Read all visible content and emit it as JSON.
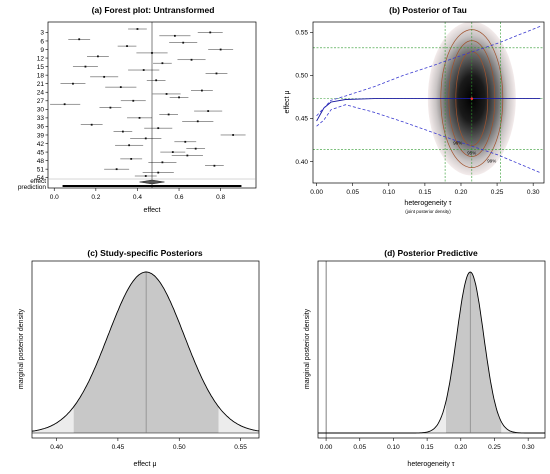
{
  "chart_data": [
    {
      "panel": "a",
      "type": "forest",
      "title": "(a) Forest plot: Untransformed",
      "xlabel": "effect",
      "xlim": [
        -0.03,
        0.97
      ],
      "xticks": [
        "0.0",
        "0.2",
        "0.4",
        "0.6",
        "0.8"
      ],
      "study_labels": [
        "3",
        "6",
        "9",
        "12",
        "15",
        "18",
        "21",
        "24",
        "27",
        "30",
        "33",
        "36",
        "39",
        "42",
        "45",
        "48",
        "51",
        "54"
      ],
      "estimates": [
        0.4,
        0.75,
        0.58,
        0.12,
        0.62,
        0.35,
        0.8,
        0.47,
        0.21,
        0.66,
        0.52,
        0.15,
        0.43,
        0.78,
        0.24,
        0.49,
        0.09,
        0.32,
        0.71,
        0.54,
        0.6,
        0.38,
        0.05,
        0.27,
        0.74,
        0.55,
        0.41,
        0.69,
        0.18,
        0.5,
        0.33,
        0.86,
        0.44,
        0.63,
        0.36,
        0.68,
        0.57,
        0.64,
        0.37,
        0.52,
        0.77,
        0.3,
        0.5,
        0.44
      ],
      "summary": {
        "label": "effect",
        "value": 0.47,
        "lower": 0.41,
        "upper": 0.53
      },
      "prediction": {
        "label": "prediction",
        "value": 0.47,
        "lower": 0.04,
        "upper": 0.9
      }
    },
    {
      "panel": "b",
      "type": "contour",
      "title": "(b) Posterior of Tau",
      "xlabel": "heterogeneity τ",
      "xsublabel": "(joint posterior density)",
      "ylabel": "effect μ",
      "xlim": [
        -0.005,
        0.315
      ],
      "ylim": [
        0.375,
        0.562
      ],
      "xticks": [
        "0.00",
        "0.05",
        "0.10",
        "0.15",
        "0.20",
        "0.25",
        "0.30"
      ],
      "yticks": [
        "0.40",
        "0.45",
        "0.50",
        "0.55"
      ],
      "mode": {
        "tau": 0.215,
        "mu": 0.473
      },
      "contour_labels": [
        "90%",
        "95%",
        "99%"
      ],
      "tau_interval": [
        0.178,
        0.255
      ],
      "mu_interval": [
        0.414,
        0.532
      ],
      "conditional_mean": [
        [
          0.0,
          0.447
        ],
        [
          0.01,
          0.462
        ],
        [
          0.02,
          0.469
        ],
        [
          0.04,
          0.472
        ],
        [
          0.08,
          0.473
        ],
        [
          0.31,
          0.473
        ]
      ],
      "conditional_upper": [
        [
          0.0,
          0.453
        ],
        [
          0.01,
          0.462
        ],
        [
          0.02,
          0.471
        ],
        [
          0.04,
          0.476
        ],
        [
          0.08,
          0.487
        ],
        [
          0.12,
          0.5
        ],
        [
          0.16,
          0.511
        ],
        [
          0.2,
          0.523
        ],
        [
          0.25,
          0.537
        ],
        [
          0.31,
          0.557
        ]
      ],
      "conditional_lower": [
        [
          0.0,
          0.441
        ],
        [
          0.01,
          0.448
        ],
        [
          0.02,
          0.46
        ],
        [
          0.04,
          0.466
        ],
        [
          0.08,
          0.457
        ],
        [
          0.12,
          0.446
        ],
        [
          0.16,
          0.434
        ],
        [
          0.2,
          0.422
        ],
        [
          0.25,
          0.408
        ],
        [
          0.31,
          0.387
        ]
      ]
    },
    {
      "panel": "c",
      "type": "density",
      "title": "(c) Study-specific Posteriors",
      "xlabel": "effect μ",
      "ylabel": "marginal posterior density",
      "xlim": [
        0.38,
        0.565
      ],
      "xticks": [
        "0.40",
        "0.45",
        "0.50",
        "0.55"
      ],
      "mean": 0.473,
      "sd": 0.031,
      "ci": [
        0.414,
        0.532
      ],
      "median": 0.473
    },
    {
      "panel": "d",
      "type": "density",
      "title": "(d) Posterior Predictive",
      "xlabel": "heterogeneity τ",
      "ylabel": "marginal posterior density",
      "xlim": [
        -0.012,
        0.325
      ],
      "xticks": [
        "0.00",
        "0.05",
        "0.10",
        "0.15",
        "0.20",
        "0.25",
        "0.30"
      ],
      "mean": 0.214,
      "sd": 0.02,
      "ci": [
        0.178,
        0.26
      ],
      "median": 0.214,
      "reference": 0.0
    }
  ]
}
